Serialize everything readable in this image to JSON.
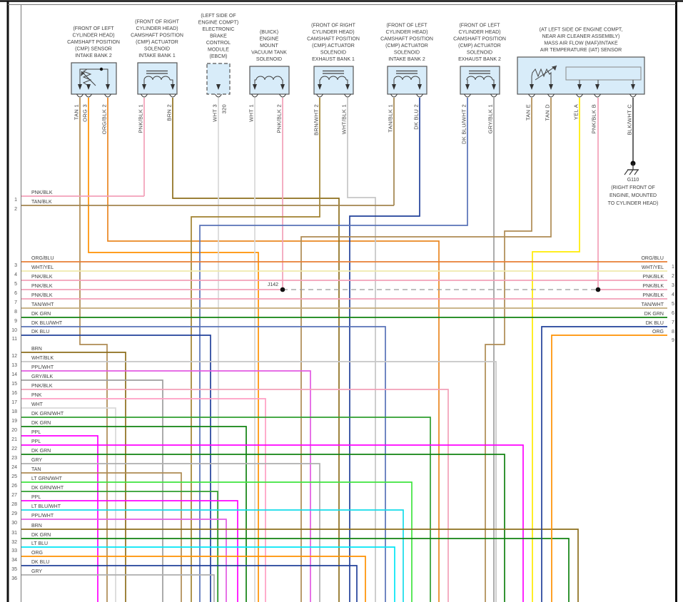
{
  "diagram": {
    "junction_label": "J142",
    "ground": {
      "name": "G110",
      "location_lines": [
        "(RIGHT FRONT OF",
        "ENGINE, MOUNTED",
        "TO CYLINDER HEAD)"
      ]
    },
    "components": [
      {
        "id": "cmp-sensor-intake-bank-2",
        "label_lines": [
          "(FRONT OF LEFT",
          "CYLINDER HEAD)",
          "CAMSHAFT POSITION",
          "(CMP) SENSOR",
          "INTAKE BANK 2"
        ],
        "pins": [
          {
            "label": "TAN 1",
            "color": "TAN"
          },
          {
            "label": "ORG 3",
            "color": "ORG"
          },
          {
            "label": "ORG/BLK 2",
            "color": "ORG/BLK"
          }
        ]
      },
      {
        "id": "cmp-actuator-solenoid-intake-bank-1",
        "label_lines": [
          "(FRONT OF RIGHT",
          "CYLINDER HEAD)",
          "CAMSHAFT POSITION",
          "(CMP) ACTUATOR",
          "SOLENOID",
          "INTAKE BANK 1"
        ],
        "pins": [
          {
            "label": "PNK/BLK 1",
            "color": "PNK/BLK"
          },
          {
            "label": "BRN 2",
            "color": "BRN"
          }
        ]
      },
      {
        "id": "ebcm",
        "label_lines": [
          "(LEFT SIDE OF",
          "ENGINE COMPT)",
          "ELECTRONIC",
          "BRAKE",
          "CONTROL",
          "MODULE",
          "(EBCM)"
        ],
        "pins": [
          {
            "label": "WHT 3",
            "color": "WHT",
            "circuit": "320"
          }
        ]
      },
      {
        "id": "engine-mount-vacuum-tank-solenoid",
        "label_lines": [
          "(BUICK)",
          "ENGINE",
          "MOUNT",
          "VACUUM TANK",
          "SOLENOID"
        ],
        "pins": [
          {
            "label": "WHT 1",
            "color": "WHT"
          },
          {
            "label": "PNK/BLK 2",
            "color": "PNK/BLK"
          }
        ]
      },
      {
        "id": "cmp-actuator-solenoid-exhaust-bank-1",
        "label_lines": [
          "(FRONT OF RIGHT",
          "CYLINDER HEAD)",
          "CAMSHAFT POSITION",
          "(CMP) ACTUATOR",
          "SOLENOID",
          "EXHAUST BANK 1"
        ],
        "pins": [
          {
            "label": "BRN/WHT 2",
            "color": "BRN/WHT"
          },
          {
            "label": "WHT/BLK 1",
            "color": "WHT/BLK"
          }
        ]
      },
      {
        "id": "cmp-actuator-solenoid-intake-bank-2",
        "label_lines": [
          "(FRONT OF LEFT",
          "CYLINDER HEAD)",
          "CAMSHAFT POSITION",
          "(CMP) ACTUATOR",
          "SOLENOID",
          "INTAKE BANK 2"
        ],
        "pins": [
          {
            "label": "TAN/BLK 1",
            "color": "TAN/BLK"
          },
          {
            "label": "DK BLU 2",
            "color": "DK BLU"
          }
        ]
      },
      {
        "id": "cmp-actuator-solenoid-exhaust-bank-2",
        "label_lines": [
          "(FRONT OF LEFT",
          "CYLINDER HEAD)",
          "CAMSHAFT POSITION",
          "(CMP) ACTUATOR",
          "SOLENOID",
          "EXHAUST BANK 2"
        ],
        "pins": [
          {
            "label": "DK BLU/WHT 2",
            "color": "DK BLU/WHT"
          },
          {
            "label": "GRY/BLK 1",
            "color": "GRY/BLK"
          }
        ]
      },
      {
        "id": "maf-iat-sensor",
        "label_lines": [
          "(AT LEFT SIDE OF ENGINE COMPT,",
          "NEAR AIR CLEANER ASSEMBLY)",
          "MASS AIR FLOW (MAF)/INTAKE",
          "AIR TEMPERATURE (IAT) SENSOR"
        ],
        "pins": [
          {
            "label": "TAN E",
            "color": "TAN"
          },
          {
            "label": "TAN D",
            "color": "TAN"
          },
          {
            "label": "YEL A",
            "color": "YEL"
          },
          {
            "label": "PNK/BLK B",
            "color": "PNK/BLK"
          },
          {
            "label": "BLK/WHT C",
            "color": "BLK/WHT"
          }
        ]
      }
    ],
    "left_rows": [
      {
        "n": 1,
        "label": "PNK/BLK"
      },
      {
        "n": 2,
        "label": "TAN/BLK"
      },
      {
        "n": 3,
        "label": "ORG/BLU"
      },
      {
        "n": 4,
        "label": "WHT/YEL"
      },
      {
        "n": 5,
        "label": "PNK/BLK"
      },
      {
        "n": 6,
        "label": "PNK/BLK"
      },
      {
        "n": 7,
        "label": "PNK/BLK"
      },
      {
        "n": 8,
        "label": "TAN/WHT"
      },
      {
        "n": 9,
        "label": "DK GRN"
      },
      {
        "n": 10,
        "label": "DK BLU/WHT"
      },
      {
        "n": 11,
        "label": "DK BLU"
      },
      {
        "n": 12,
        "label": "BRN"
      },
      {
        "n": 13,
        "label": "WHT/BLK"
      },
      {
        "n": 14,
        "label": "PPL/WHT"
      },
      {
        "n": 15,
        "label": "GRY/BLK"
      },
      {
        "n": 16,
        "label": "PNK/BLK"
      },
      {
        "n": 17,
        "label": "PNK"
      },
      {
        "n": 18,
        "label": "WHT"
      },
      {
        "n": 19,
        "label": "DK GRN/WHT"
      },
      {
        "n": 20,
        "label": "DK GRN"
      },
      {
        "n": 21,
        "label": "PPL"
      },
      {
        "n": 22,
        "label": "PPL"
      },
      {
        "n": 23,
        "label": "DK GRN"
      },
      {
        "n": 24,
        "label": "GRY"
      },
      {
        "n": 25,
        "label": "TAN"
      },
      {
        "n": 26,
        "label": "LT GRN/WHT"
      },
      {
        "n": 27,
        "label": "DK GRN/WHT"
      },
      {
        "n": 28,
        "label": "PPL"
      },
      {
        "n": 29,
        "label": "LT BLU/WHT"
      },
      {
        "n": 30,
        "label": "PPL/WHT"
      },
      {
        "n": 31,
        "label": "BRN"
      },
      {
        "n": 32,
        "label": "DK GRN"
      },
      {
        "n": 33,
        "label": "LT BLU"
      },
      {
        "n": 34,
        "label": "ORG"
      },
      {
        "n": 35,
        "label": "DK BLU"
      },
      {
        "n": 36,
        "label": "GRY"
      }
    ],
    "right_rows": [
      {
        "n": 1,
        "label": "ORG/BLU"
      },
      {
        "n": 2,
        "label": "WHT/YEL"
      },
      {
        "n": 3,
        "label": "PNK/BLK"
      },
      {
        "n": 4,
        "label": "PNK/BLK"
      },
      {
        "n": 5,
        "label": "PNK/BLK"
      },
      {
        "n": 6,
        "label": "TAN/WHT"
      },
      {
        "n": 7,
        "label": "DK GRN"
      },
      {
        "n": 8,
        "label": "DK BLU"
      },
      {
        "n": 9,
        "label": "ORG"
      }
    ],
    "wire_colors": {
      "TAN": "#ae8b53",
      "TAN/BLK": "#a2854e",
      "TAN/WHT": "#c3ab7c",
      "ORG": "#ff9100",
      "ORG/BLK": "#ea8722",
      "ORG/BLU": "#e87e35",
      "PNK/BLK": "#f2a0b8",
      "PNK": "#ff9fc4",
      "BRN": "#8d6e1c",
      "BRN/WHT": "#a0812f",
      "WHT": "#d9d9d9",
      "WHT/BLK": "#c6c6c6",
      "WHT/YEL": "#efe9ad",
      "GRY": "#aeaeae",
      "GRY/BLK": "#9e9e9e",
      "DK BLU": "#21409a",
      "DK BLU/WHT": "#5772b8",
      "LT BLU": "#00e6f6",
      "LT BLU/WHT": "#15dcea",
      "DK GRN": "#108210",
      "DK GRN/WHT": "#2f9e2f",
      "LT GRN/WHT": "#3fe43f",
      "PPL": "#ff00ff",
      "PPL/WHT": "#e35ae3",
      "YEL": "#ffec00",
      "BLK/WHT": "#4d4d4d"
    }
  }
}
